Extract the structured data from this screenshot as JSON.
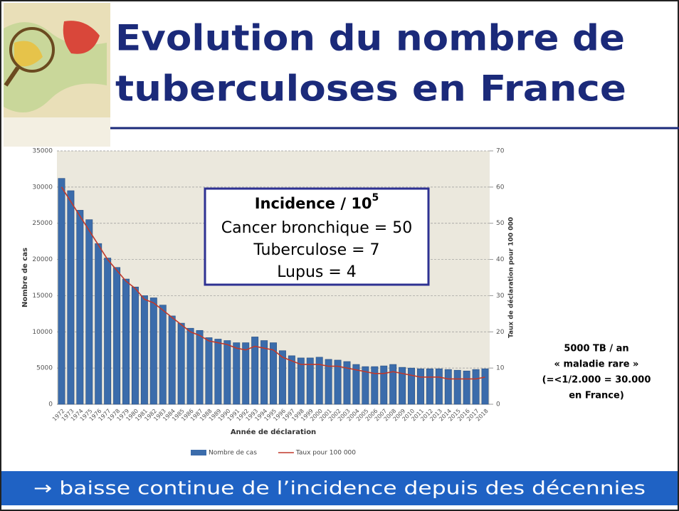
{
  "header": {
    "title_lines": [
      "Evolution du nombre de",
      "tuberculoses en France"
    ]
  },
  "chart_data": {
    "type": "bar",
    "x_label": "Année de déclaration",
    "y_label": "Nombre de cas",
    "y2_label": "Taux de déclaration pour 100 000",
    "categories": [
      "1972",
      "1973",
      "1974",
      "1975",
      "1976",
      "1977",
      "1978",
      "1979",
      "1980",
      "1981",
      "1982",
      "1983",
      "1984",
      "1985",
      "1986",
      "1987",
      "1988",
      "1989",
      "1990",
      "1991",
      "1992",
      "1993",
      "1994",
      "1995",
      "1996",
      "1997",
      "1998",
      "1999",
      "2000",
      "2001",
      "2002",
      "2003",
      "2004",
      "2005",
      "2006",
      "2007",
      "2008",
      "2009",
      "2010",
      "2011",
      "2012",
      "2013",
      "2014",
      "2015",
      "2016",
      "2017",
      "2018"
    ],
    "series": [
      {
        "name": "Nombre de cas",
        "type": "bar",
        "color": "#3b6cab",
        "values": [
          31200,
          29500,
          26800,
          25500,
          22200,
          20200,
          18900,
          17300,
          16200,
          15000,
          14700,
          13700,
          12200,
          11200,
          10500,
          10200,
          9200,
          9000,
          8800,
          8500,
          8500,
          9300,
          8800,
          8500,
          7400,
          6700,
          6400,
          6400,
          6500,
          6200,
          6100,
          5900,
          5500,
          5200,
          5200,
          5300,
          5500,
          5100,
          5000,
          4900,
          4900,
          4900,
          4800,
          4700,
          4600,
          4800,
          4900
        ]
      },
      {
        "name": "Taux pour 100 000",
        "type": "line",
        "axis": "y2",
        "color": "#c0392b",
        "values": [
          60,
          56,
          52,
          48,
          44,
          40,
          37,
          34,
          32,
          29,
          28,
          26,
          24,
          22,
          20,
          19,
          17.5,
          17,
          16.5,
          15.5,
          15,
          16,
          15.5,
          15,
          13,
          12,
          11,
          11,
          11,
          10.5,
          10.5,
          10,
          9.5,
          9,
          8.5,
          8.5,
          9,
          8.5,
          8,
          7.5,
          7.5,
          7.5,
          7,
          7,
          7,
          7,
          7.5
        ]
      }
    ],
    "ylim": [
      0,
      35000
    ],
    "yticks": [
      0,
      5000,
      10000,
      15000,
      20000,
      25000,
      30000,
      35000
    ],
    "y2lim": [
      0,
      70
    ],
    "y2ticks": [
      0,
      10,
      20,
      30,
      40,
      50,
      60,
      70
    ],
    "grid": true,
    "legend": "bottom"
  },
  "info_box": {
    "title": "Incidence / 10",
    "title_sup": "5",
    "lines": [
      "Cancer bronchique = 50",
      "Tuberculose = 7",
      "Lupus = 4"
    ]
  },
  "side_note": [
    "5000 TB / an",
    "« maladie rare »",
    "(=<1/2.000 = 30.000",
    "en France)"
  ],
  "footer": "→ baisse continue de l’incidence depuis des décennies"
}
